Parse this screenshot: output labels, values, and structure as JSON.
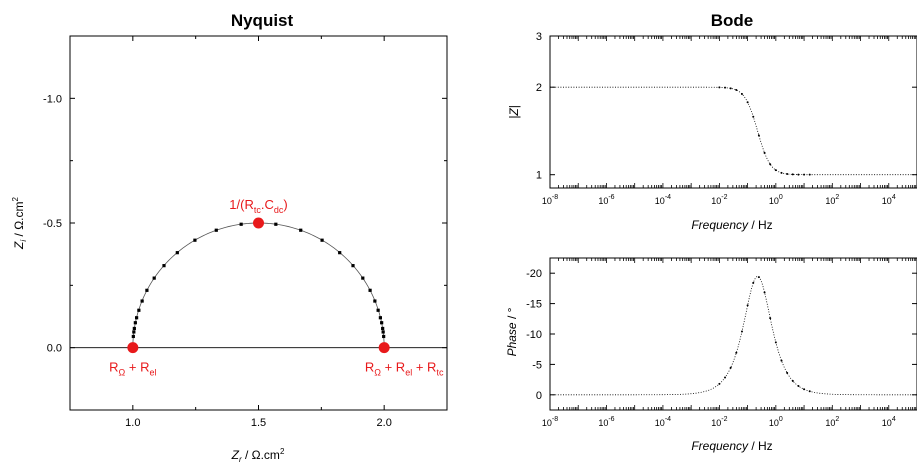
{
  "chart_data": [
    {
      "type": "scatter",
      "title": "Nyquist",
      "xlabel": {
        "sym": "Z",
        "sub": "r",
        "unit": " / Ω.cm",
        "sup": "2"
      },
      "ylabel": {
        "sym": "Z",
        "sub": "i",
        "unit": " / Ω.cm",
        "sup": "2"
      },
      "xlim": [
        0.75,
        2.25
      ],
      "ylim": [
        0.25,
        -1.25
      ],
      "y_reversed": true,
      "xticks": [
        1.0,
        1.5,
        2.0
      ],
      "xticklabels": [
        "1.0",
        "1.5",
        "2.0"
      ],
      "yticks": [
        0.0,
        -0.5,
        -1.0
      ],
      "yticklabels": [
        "0.0",
        "-0.5",
        "-1.0"
      ],
      "reference_line": 0,
      "series": [
        {
          "x": [
            1.0,
            1.002,
            1.004,
            1.006,
            1.01,
            1.015,
            1.024,
            1.037,
            1.056,
            1.085,
            1.124,
            1.177,
            1.247,
            1.332,
            1.431,
            1.5,
            1.569,
            1.668,
            1.753,
            1.823,
            1.876,
            1.915,
            1.944,
            1.963,
            1.976,
            1.985,
            1.99,
            1.994,
            1.996,
            1.998,
            2.0
          ],
          "y": [
            0.0,
            -0.045,
            -0.063,
            -0.077,
            -0.1,
            -0.12,
            -0.15,
            -0.187,
            -0.23,
            -0.279,
            -0.329,
            -0.381,
            -0.431,
            -0.471,
            -0.495,
            -0.5,
            -0.495,
            -0.471,
            -0.431,
            -0.381,
            -0.329,
            -0.279,
            -0.23,
            -0.187,
            -0.15,
            -0.12,
            -0.1,
            -0.077,
            -0.063,
            -0.045,
            0.0
          ]
        }
      ],
      "highlights": [
        {
          "x": 1.0,
          "y": 0.0,
          "parts": [
            {
              "t": "R"
            },
            {
              "t": "Ω",
              "sub": true
            },
            {
              "t": " + R"
            },
            {
              "t": "el",
              "sub": true
            }
          ]
        },
        {
          "x": 1.5,
          "y": -0.5,
          "parts": [
            {
              "t": "1/(R"
            },
            {
              "t": "tc",
              "sub": true
            },
            {
              "t": ".C"
            },
            {
              "t": "dc",
              "sub": true
            },
            {
              "t": ")"
            }
          ]
        },
        {
          "x": 2.0,
          "y": 0.0,
          "parts": [
            {
              "t": "R"
            },
            {
              "t": "Ω",
              "sub": true
            },
            {
              "t": " + R"
            },
            {
              "t": "el",
              "sub": true
            },
            {
              "t": " + R"
            },
            {
              "t": "tc",
              "sub": true
            }
          ]
        }
      ],
      "highlight_color": "#e8191b"
    },
    {
      "type": "line",
      "title": "Bode",
      "xlabel": {
        "sym": "Frequency",
        "unit": " / Hz"
      },
      "ylabel": {
        "sym": "|Z|"
      },
      "x_scale": "log",
      "y_scale": "log",
      "xlim": [
        1e-08,
        100000.0
      ],
      "ylim": [
        0.9,
        3
      ],
      "xticks": [
        -8,
        -6,
        -4,
        -2,
        0,
        2,
        4
      ],
      "yticks": [
        1,
        2,
        3
      ],
      "yticklabels": [
        "1",
        "2",
        "3"
      ],
      "model": {
        "r_omega_plus_el": 1,
        "r_tc": 1,
        "c_dc": 1
      }
    },
    {
      "type": "line",
      "xlabel": {
        "sym": "Frequency",
        "unit": " / Hz"
      },
      "ylabel": {
        "sym": "Phase",
        "unit": " / °"
      },
      "x_scale": "log",
      "xlim": [
        1e-08,
        100000.0
      ],
      "ylim": [
        2.5,
        -22.5
      ],
      "y_reversed": true,
      "xticks": [
        -8,
        -6,
        -4,
        -2,
        0,
        2,
        4
      ],
      "yticks": [
        0,
        -5,
        -10,
        -15,
        -20
      ],
      "yticklabels": [
        "0",
        "-5",
        "-10",
        "-15",
        "-20"
      ],
      "model": {
        "r_omega_plus_el": 1,
        "r_tc": 1,
        "c_dc": 1
      }
    }
  ]
}
